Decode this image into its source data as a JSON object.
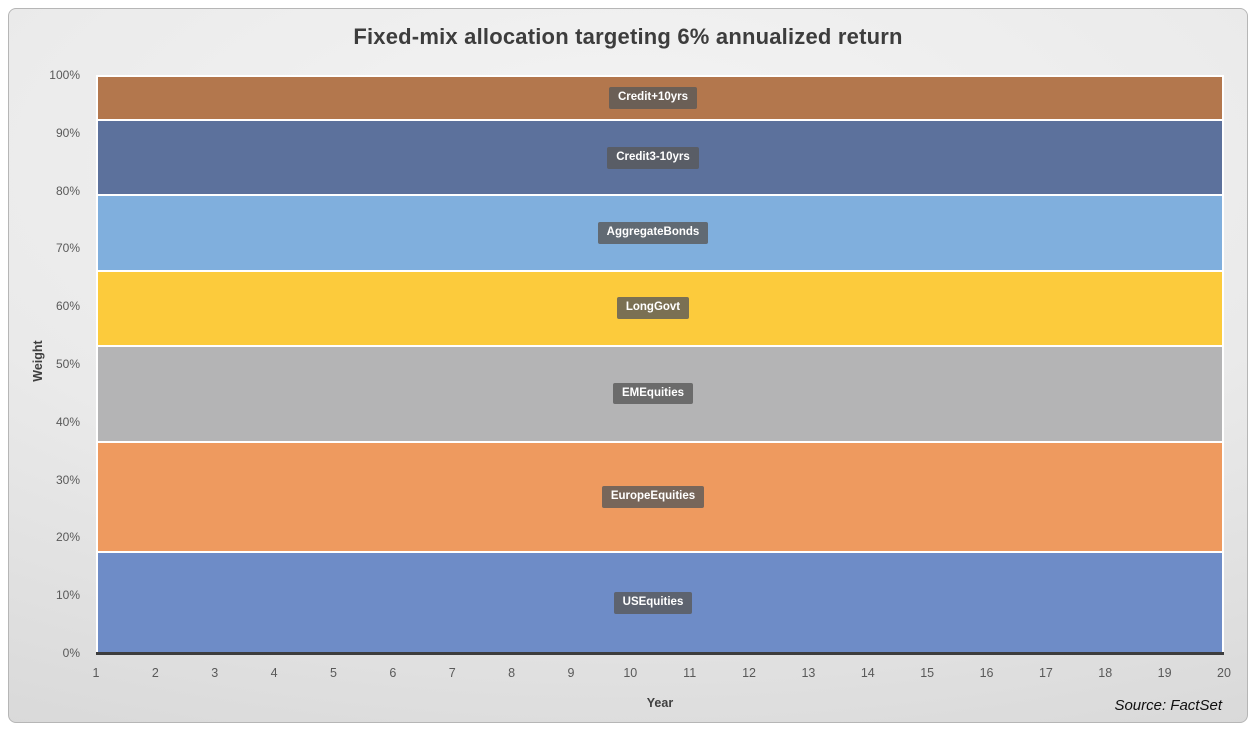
{
  "slide": {
    "source": "Source: FactSet"
  },
  "chart_data": {
    "type": "area",
    "stacked": true,
    "stack_total_percent": 100,
    "title": "Fixed-mix allocation targeting 6% annualized return",
    "xlabel": "Year",
    "ylabel": "Weight",
    "x_range": [
      1,
      20
    ],
    "x_tick_labels": [
      "1",
      "2",
      "3",
      "4",
      "5",
      "6",
      "7",
      "8",
      "9",
      "10",
      "11",
      "12",
      "13",
      "14",
      "15",
      "16",
      "17",
      "18",
      "19",
      "20"
    ],
    "ylim": [
      0,
      100
    ],
    "y_tick_values": [
      0,
      10,
      20,
      30,
      40,
      50,
      60,
      70,
      80,
      90,
      100
    ],
    "y_tick_labels": [
      "0%",
      "10%",
      "20%",
      "30%",
      "40%",
      "50%",
      "60%",
      "70%",
      "80%",
      "90%",
      "100%"
    ],
    "values_constant_across_years": true,
    "grid": false,
    "legend_position": "in-plot data labels",
    "series_bottom_to_top": [
      {
        "name": "USEquities",
        "weight_percent": 19.0,
        "color": "#6E8CC7"
      },
      {
        "name": "EuropeEquities",
        "weight_percent": 21.0,
        "color": "#EE9A5F"
      },
      {
        "name": "EMEquities",
        "weight_percent": 17.5,
        "color": "#B4B4B5"
      },
      {
        "name": "LongGovt",
        "weight_percent": 12.5,
        "color": "#FCCB3C"
      },
      {
        "name": "AggregateBonds",
        "weight_percent": 12.5,
        "color": "#80AFDD"
      },
      {
        "name": "Credit3-10yrs",
        "weight_percent": 12.5,
        "color": "#5C719C"
      },
      {
        "name": "Credit+10yrs",
        "weight_percent": 5.0,
        "color": "#B3774D"
      }
    ],
    "label_chip_style": {
      "background": "rgba(89,89,89,0.8)",
      "text_color": "#FFFFFF"
    },
    "axis_line_color": "#3D3D3D",
    "separator_color": "#FFFFFF"
  }
}
